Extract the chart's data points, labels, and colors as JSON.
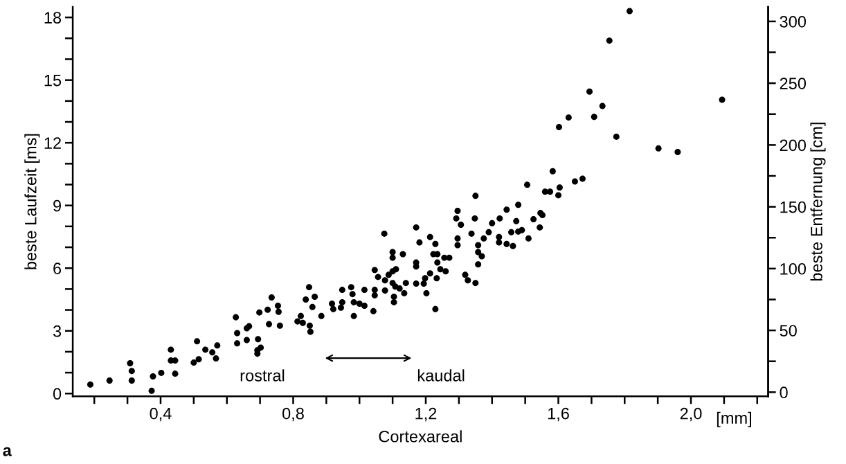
{
  "chart_data": {
    "type": "scatter",
    "xlabel": "Cortexareal",
    "ylabel": "beste Laufzeit [ms]",
    "y2label": "beste Entfernung [cm]",
    "annotations": [
      "rostral",
      "kaudal",
      "[mm]",
      "a"
    ],
    "xlim": [
      0.135,
      2.233
    ],
    "ylim": [
      -0.13,
      18.5
    ],
    "y2lim": [
      -3.3,
      311.7
    ],
    "xticks": [
      {
        "value": 0.2,
        "label": null
      },
      {
        "value": 0.3,
        "label": null
      },
      {
        "value": 0.4,
        "label": "0,4"
      },
      {
        "value": 0.5,
        "label": null
      },
      {
        "value": 0.6,
        "label": null
      },
      {
        "value": 0.7,
        "label": null
      },
      {
        "value": 0.8,
        "label": "0,8"
      },
      {
        "value": 0.9,
        "label": null
      },
      {
        "value": 1.0,
        "label": null
      },
      {
        "value": 1.1,
        "label": null
      },
      {
        "value": 1.2,
        "label": "1,2"
      },
      {
        "value": 1.3,
        "label": null
      },
      {
        "value": 1.4,
        "label": null
      },
      {
        "value": 1.5,
        "label": null
      },
      {
        "value": 1.6,
        "label": "1,6"
      },
      {
        "value": 1.7,
        "label": null
      },
      {
        "value": 1.8,
        "label": null
      },
      {
        "value": 1.9,
        "label": null
      },
      {
        "value": 2.0,
        "label": "2,0"
      },
      {
        "value": 2.1,
        "label": null
      },
      {
        "value": 2.2,
        "label": null
      }
    ],
    "yticks": [
      0,
      {
        "value": 1,
        "label": null
      },
      {
        "value": 2,
        "label": null
      },
      3,
      {
        "value": 4,
        "label": null
      },
      {
        "value": 5,
        "label": null
      },
      6,
      {
        "value": 7,
        "label": null
      },
      {
        "value": 8,
        "label": null
      },
      9,
      {
        "value": 10,
        "label": null
      },
      {
        "value": 11,
        "label": null
      },
      12,
      {
        "value": 13,
        "label": null
      },
      {
        "value": 14,
        "label": null
      },
      15,
      {
        "value": 16,
        "label": null
      },
      {
        "value": 17,
        "label": null
      },
      18
    ],
    "y2ticks": [
      0,
      {
        "value": 25,
        "label": null
      },
      50,
      {
        "value": 75,
        "label": null
      },
      100,
      {
        "value": 125,
        "label": null
      },
      150,
      {
        "value": 175,
        "label": null
      },
      200,
      {
        "value": 225,
        "label": null
      },
      250,
      {
        "value": 275,
        "label": null
      },
      300
    ],
    "grid": false,
    "marker": "circle",
    "series": [
      {
        "color": "#000000",
        "x": [
          0.188,
          0.246,
          0.308,
          0.313,
          0.313,
          0.373,
          0.377,
          0.402,
          0.431,
          0.431,
          0.444,
          0.444,
          0.5,
          0.515,
          0.51,
          0.535,
          0.556,
          0.567,
          0.571,
          0.627,
          0.631,
          0.631,
          0.66,
          0.667,
          0.66,
          0.694,
          0.702,
          0.692,
          0.692,
          0.698,
          0.723,
          0.735,
          0.754,
          0.756,
          0.727,
          0.76,
          0.813,
          0.823,
          0.829,
          0.85,
          0.852,
          0.838,
          0.848,
          0.858,
          0.865,
          0.885,
          0.917,
          0.921,
          0.948,
          0.948,
          0.944,
          0.975,
          0.979,
          0.983,
          0.983,
          1.0,
          1.015,
          1.015,
          1.042,
          1.046,
          1.046,
          1.046,
          1.056,
          1.077,
          1.077,
          1.088,
          1.1,
          1.11,
          1.1,
          1.108,
          1.121,
          1.135,
          1.14,
          1.104,
          1.104,
          1.1,
          1.1,
          1.131,
          1.075,
          1.171,
          1.171,
          1.171,
          1.194,
          1.198,
          1.213,
          1.202,
          1.229,
          1.181,
          1.213,
          1.229,
          1.171,
          1.223,
          1.235,
          1.235,
          1.256,
          1.271,
          1.244,
          1.233,
          1.26,
          1.296,
          1.292,
          1.306,
          1.296,
          1.296,
          1.348,
          1.338,
          1.35,
          1.358,
          1.358,
          1.369,
          1.358,
          1.319,
          1.327,
          1.35,
          1.375,
          1.39,
          1.4,
          1.423,
          1.421,
          1.421,
          1.444,
          1.479,
          1.473,
          1.444,
          1.463,
          1.458,
          1.479,
          1.49,
          1.51,
          1.602,
          1.631,
          1.775,
          1.902,
          1.96,
          1.583,
          1.506,
          1.65,
          1.673,
          1.56,
          1.575,
          1.604,
          1.6,
          1.546,
          1.525,
          1.552,
          1.544,
          1.815,
          1.754,
          1.694,
          1.733,
          1.708,
          2.094
        ],
        "values": [
          0.43,
          0.62,
          1.45,
          1.08,
          0.62,
          0.13,
          0.82,
          0.99,
          2.1,
          1.58,
          1.58,
          0.95,
          1.48,
          1.64,
          2.5,
          2.1,
          1.97,
          1.68,
          2.3,
          3.65,
          2.89,
          2.4,
          3.12,
          3.22,
          2.56,
          2.6,
          2.2,
          1.91,
          2.07,
          3.88,
          4.01,
          4.6,
          4.2,
          3.91,
          3.32,
          3.25,
          3.45,
          3.71,
          3.38,
          3.25,
          2.96,
          4.5,
          5.09,
          4.14,
          4.63,
          3.71,
          4.3,
          4.04,
          4.96,
          4.37,
          4.11,
          5.09,
          4.76,
          4.37,
          3.71,
          4.3,
          4.96,
          4.2,
          3.94,
          4.96,
          4.7,
          5.91,
          5.58,
          4.93,
          5.42,
          5.68,
          5.85,
          5.95,
          5.29,
          5.12,
          5.03,
          4.8,
          5.29,
          4.63,
          4.37,
          6.77,
          6.5,
          6.67,
          7.65,
          5.26,
          6.27,
          6.08,
          5.26,
          5.52,
          5.75,
          4.8,
          4.04,
          7.23,
          7.49,
          7.16,
          7.95,
          6.67,
          6.67,
          6.27,
          6.5,
          6.5,
          5.95,
          5.52,
          5.85,
          8.74,
          8.38,
          8.08,
          7.42,
          7.1,
          8.38,
          7.65,
          9.46,
          7.1,
          6.77,
          6.57,
          6.18,
          5.68,
          5.42,
          5.29,
          7.42,
          7.72,
          8.15,
          8.38,
          7.49,
          7.23,
          8.8,
          9.03,
          8.25,
          7.16,
          7.06,
          7.72,
          7.75,
          7.82,
          7.42,
          12.75,
          13.21,
          12.29,
          11.73,
          11.56,
          10.64,
          9.99,
          10.15,
          10.28,
          9.66,
          9.66,
          9.86,
          9.49,
          8.64,
          8.34,
          8.54,
          7.95,
          18.3,
          16.89,
          14.45,
          13.76,
          13.24,
          14.06
        ]
      }
    ]
  }
}
